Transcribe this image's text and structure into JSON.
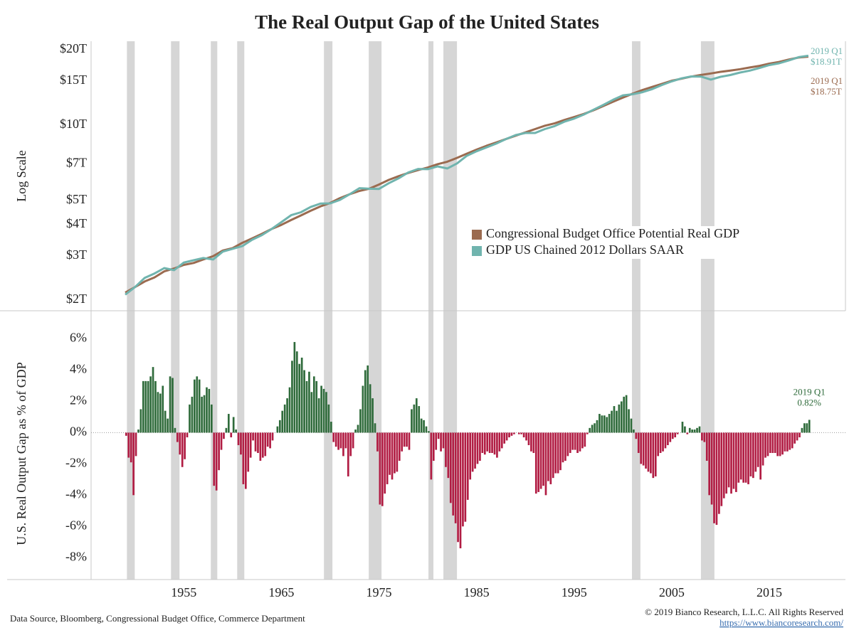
{
  "title": "The Real Output Gap of the United States",
  "source": "Data Source, Bloomberg, Congressional Budget Office, Commerce Department",
  "copyright": "© 2019 Bianco Research, L.L.C. All Rights Reserved",
  "url": "https://www.biancoresearch.com/",
  "chart_data": [
    {
      "type": "line",
      "ylabel": "Log Scale",
      "log_scale": true,
      "legend": "center right",
      "xlim": [
        1945.5,
        2022.8
      ],
      "ylim": [
        1.81,
        21.6
      ],
      "yticks": [
        {
          "value": 2,
          "label": "$2T"
        },
        {
          "value": 3,
          "label": "$3T"
        },
        {
          "value": 4,
          "label": "$4T"
        },
        {
          "value": 5,
          "label": "$5T"
        },
        {
          "value": 7,
          "label": "$7T"
        },
        {
          "value": 10,
          "label": "$10T"
        },
        {
          "value": 15,
          "label": "$15T"
        },
        {
          "value": 20,
          "label": "$20T"
        }
      ],
      "shaded_periods": [
        [
          1949.17,
          1949.97
        ],
        [
          1953.69,
          1954.56
        ],
        [
          1957.77,
          1958.43
        ],
        [
          1960.47,
          1961.2
        ],
        [
          1969.36,
          1970.23
        ],
        [
          1973.95,
          1975.26
        ],
        [
          1980.07,
          1980.58
        ],
        [
          1981.6,
          1982.99
        ],
        [
          2000.92,
          2001.79
        ],
        [
          2007.99,
          2009.37
        ]
      ],
      "shade_color": "#d6d6d6",
      "x": [
        1949,
        1950,
        1951,
        1952,
        1953,
        1954,
        1955,
        1956,
        1957,
        1958,
        1959,
        1960,
        1961,
        1962,
        1963,
        1964,
        1965,
        1966,
        1967,
        1968,
        1969,
        1970,
        1971,
        1972,
        1973,
        1974,
        1975,
        1976,
        1977,
        1978,
        1979,
        1980,
        1981,
        1982,
        1983,
        1984,
        1985,
        1986,
        1987,
        1988,
        1989,
        1990,
        1991,
        1992,
        1993,
        1994,
        1995,
        1996,
        1997,
        1998,
        1999,
        2000,
        2001,
        2002,
        2003,
        2004,
        2005,
        2006,
        2007,
        2008,
        2009,
        2010,
        2011,
        2012,
        2013,
        2014,
        2015,
        2016,
        2017,
        2018,
        2019
      ],
      "series": [
        {
          "name": "Congressional Budget Office Potential Real GDP",
          "color": "#9b6b50",
          "end_label": "2019 Q1",
          "end_value_label": "$18.75T",
          "values": [
            2.14,
            2.25,
            2.37,
            2.46,
            2.6,
            2.67,
            2.76,
            2.81,
            2.9,
            2.99,
            3.15,
            3.22,
            3.38,
            3.52,
            3.67,
            3.84,
            3.99,
            4.17,
            4.35,
            4.54,
            4.73,
            4.88,
            5.1,
            5.29,
            5.45,
            5.56,
            5.78,
            6.03,
            6.24,
            6.43,
            6.6,
            6.76,
            6.97,
            7.13,
            7.39,
            7.68,
            7.97,
            8.25,
            8.51,
            8.78,
            9.06,
            9.34,
            9.63,
            9.93,
            10.15,
            10.47,
            10.76,
            11.07,
            11.45,
            11.91,
            12.39,
            12.87,
            13.34,
            13.8,
            14.19,
            14.6,
            15.02,
            15.3,
            15.6,
            15.84,
            16.06,
            16.3,
            16.49,
            16.7,
            16.97,
            17.23,
            17.58,
            17.85,
            18.26,
            18.59,
            18.75
          ]
        },
        {
          "name": "GDP US Chained 2012 Dollars SAAR",
          "color": "#70b4ae",
          "end_label": "2019 Q1",
          "end_value_label": "$18.91T",
          "values": [
            2.1,
            2.25,
            2.45,
            2.55,
            2.68,
            2.63,
            2.82,
            2.88,
            2.94,
            2.9,
            3.12,
            3.2,
            3.28,
            3.48,
            3.63,
            3.84,
            4.09,
            4.36,
            4.48,
            4.7,
            4.85,
            4.86,
            5.02,
            5.29,
            5.59,
            5.56,
            5.55,
            5.85,
            6.12,
            6.46,
            6.67,
            6.66,
            6.83,
            6.7,
            7.02,
            7.53,
            7.85,
            8.13,
            8.42,
            8.78,
            9.11,
            9.29,
            9.29,
            9.63,
            9.9,
            10.31,
            10.6,
            11.01,
            11.51,
            12.03,
            12.61,
            13.13,
            13.27,
            13.52,
            13.91,
            14.45,
            14.94,
            15.35,
            15.63,
            15.6,
            15.18,
            15.57,
            15.83,
            16.2,
            16.49,
            16.89,
            17.35,
            17.64,
            18.11,
            18.65,
            18.91
          ]
        }
      ]
    },
    {
      "type": "bar",
      "ylabel": "U.S. Real Output Gap as % of GDP",
      "xlim": [
        1945.5,
        2022.8
      ],
      "ylim": [
        -9.4,
        7.8
      ],
      "xticks": [
        1955,
        1965,
        1975,
        1985,
        1995,
        2005,
        2015
      ],
      "yticks": [
        {
          "value": -8,
          "label": "-8%"
        },
        {
          "value": -6,
          "label": "-6%"
        },
        {
          "value": -4,
          "label": "-4%"
        },
        {
          "value": -2,
          "label": "-2%"
        },
        {
          "value": 0,
          "label": "0%"
        },
        {
          "value": 2,
          "label": "2%"
        },
        {
          "value": 4,
          "label": "4%"
        },
        {
          "value": 6,
          "label": "6%"
        }
      ],
      "shaded_periods": [
        [
          1949.17,
          1949.97
        ],
        [
          1953.69,
          1954.56
        ],
        [
          1957.77,
          1958.43
        ],
        [
          1960.47,
          1961.2
        ],
        [
          1969.36,
          1970.23
        ],
        [
          1973.95,
          1975.26
        ],
        [
          1980.07,
          1980.58
        ],
        [
          1981.6,
          1982.99
        ],
        [
          2000.92,
          2001.79
        ],
        [
          2007.99,
          2009.37
        ]
      ],
      "shade_color": "#d6d6d6",
      "colors": {
        "positive": "#2f6b3b",
        "negative": "#b11c43"
      },
      "end_label": "2019 Q1",
      "end_value_label": "0.82%",
      "x": [
        1949,
        1949.25,
        1949.5,
        1949.75,
        1950,
        1950.25,
        1950.5,
        1950.75,
        1951,
        1951.25,
        1951.5,
        1951.75,
        1952,
        1952.25,
        1952.5,
        1952.75,
        1953,
        1953.25,
        1953.5,
        1953.75,
        1954,
        1954.25,
        1954.5,
        1954.75,
        1955,
        1955.25,
        1955.5,
        1955.75,
        1956,
        1956.25,
        1956.5,
        1956.75,
        1957,
        1957.25,
        1957.5,
        1957.75,
        1958,
        1958.25,
        1958.5,
        1958.75,
        1959,
        1959.25,
        1959.5,
        1959.75,
        1960,
        1960.25,
        1960.5,
        1960.75,
        1961,
        1961.25,
        1961.5,
        1961.75,
        1962,
        1962.25,
        1962.5,
        1962.75,
        1963,
        1963.25,
        1963.5,
        1963.75,
        1964,
        1964.25,
        1964.5,
        1964.75,
        1965,
        1965.25,
        1965.5,
        1965.75,
        1966,
        1966.25,
        1966.5,
        1966.75,
        1967,
        1967.25,
        1967.5,
        1967.75,
        1968,
        1968.25,
        1968.5,
        1968.75,
        1969,
        1969.25,
        1969.5,
        1969.75,
        1970,
        1970.25,
        1970.5,
        1970.75,
        1971,
        1971.25,
        1971.5,
        1971.75,
        1972,
        1972.25,
        1972.5,
        1972.75,
        1973,
        1973.25,
        1973.5,
        1973.75,
        1974,
        1974.25,
        1974.5,
        1974.75,
        1975,
        1975.25,
        1975.5,
        1975.75,
        1976,
        1976.25,
        1976.5,
        1976.75,
        1977,
        1977.25,
        1977.5,
        1977.75,
        1978,
        1978.25,
        1978.5,
        1978.75,
        1979,
        1979.25,
        1979.5,
        1979.75,
        1980,
        1980.25,
        1980.5,
        1980.75,
        1981,
        1981.25,
        1981.5,
        1981.75,
        1982,
        1982.25,
        1982.5,
        1982.75,
        1983,
        1983.25,
        1983.5,
        1983.75,
        1984,
        1984.25,
        1984.5,
        1984.75,
        1985,
        1985.25,
        1985.5,
        1985.75,
        1986,
        1986.25,
        1986.5,
        1986.75,
        1987,
        1987.25,
        1987.5,
        1987.75,
        1988,
        1988.25,
        1988.5,
        1988.75,
        1989,
        1989.25,
        1989.5,
        1989.75,
        1990,
        1990.25,
        1990.5,
        1990.75,
        1991,
        1991.25,
        1991.5,
        1991.75,
        1992,
        1992.25,
        1992.5,
        1992.75,
        1993,
        1993.25,
        1993.5,
        1993.75,
        1994,
        1994.25,
        1994.5,
        1994.75,
        1995,
        1995.25,
        1995.5,
        1995.75,
        1996,
        1996.25,
        1996.5,
        1996.75,
        1997,
        1997.25,
        1997.5,
        1997.75,
        1998,
        1998.25,
        1998.5,
        1998.75,
        1999,
        1999.25,
        1999.5,
        1999.75,
        2000,
        2000.25,
        2000.5,
        2000.75,
        2001,
        2001.25,
        2001.5,
        2001.75,
        2002,
        2002.25,
        2002.5,
        2002.75,
        2003,
        2003.25,
        2003.5,
        2003.75,
        2004,
        2004.25,
        2004.5,
        2004.75,
        2005,
        2005.25,
        2005.5,
        2005.75,
        2006,
        2006.25,
        2006.5,
        2006.75,
        2007,
        2007.25,
        2007.5,
        2007.75,
        2008,
        2008.25,
        2008.5,
        2008.75,
        2009,
        2009.25,
        2009.5,
        2009.75,
        2010,
        2010.25,
        2010.5,
        2010.75,
        2011,
        2011.25,
        2011.5,
        2011.75,
        2012,
        2012.25,
        2012.5,
        2012.75,
        2013,
        2013.25,
        2013.5,
        2013.75,
        2014,
        2014.25,
        2014.5,
        2014.75,
        2015,
        2015.25,
        2015.5,
        2015.75,
        2016,
        2016.25,
        2016.5,
        2016.75,
        2017,
        2017.25,
        2017.5,
        2017.75,
        2018,
        2018.25,
        2018.5,
        2018.75,
        2019
      ],
      "values": [
        -0.2,
        -1.6,
        -1.9,
        -4.0,
        -1.5,
        0.2,
        1.5,
        3.3,
        3.3,
        3.3,
        3.6,
        4.2,
        3.3,
        2.6,
        2.5,
        3.0,
        1.4,
        0.9,
        3.6,
        3.5,
        0.3,
        -0.6,
        -1.4,
        -2.2,
        -1.7,
        -0.3,
        1.8,
        2.3,
        3.4,
        3.6,
        3.4,
        2.3,
        2.4,
        2.9,
        2.8,
        1.8,
        -3.4,
        -3.7,
        -2.4,
        -1.1,
        -0.4,
        0.3,
        1.2,
        -0.3,
        1.0,
        0.2,
        -0.8,
        -1.4,
        -3.3,
        -3.6,
        -2.5,
        -1.6,
        -0.5,
        -1.2,
        -1.3,
        -1.8,
        -1.6,
        -1.5,
        -0.9,
        -1.0,
        -0.5,
        0.0,
        0.4,
        0.8,
        1.4,
        1.8,
        2.2,
        2.9,
        4.6,
        5.8,
        5.2,
        4.4,
        4.8,
        4.0,
        3.3,
        3.9,
        2.6,
        3.6,
        3.3,
        2.2,
        3.0,
        2.8,
        2.6,
        1.8,
        0.7,
        -0.6,
        -0.9,
        -1.1,
        -1.0,
        -1.5,
        -1.0,
        -2.8,
        -1.5,
        -1.0,
        0.2,
        0.5,
        1.5,
        3.0,
        4.0,
        4.3,
        3.1,
        2.2,
        0.6,
        -1.2,
        -4.6,
        -4.7,
        -3.9,
        -3.3,
        -2.7,
        -3.0,
        -2.6,
        -2.5,
        -1.8,
        -1.2,
        -0.9,
        -0.9,
        -1.1,
        1.5,
        1.8,
        2.2,
        1.7,
        0.9,
        0.8,
        0.4,
        0.1,
        -3.0,
        -1.8,
        -1.1,
        -0.4,
        -1.2,
        -1.0,
        -2.2,
        -2.9,
        -4.5,
        -5.3,
        -5.8,
        -7.0,
        -7.4,
        -6.0,
        -5.7,
        -4.3,
        -3.0,
        -2.5,
        -2.3,
        -2.0,
        -1.8,
        -1.3,
        -1.4,
        -1.2,
        -1.3,
        -1.3,
        -1.4,
        -1.6,
        -1.2,
        -1.0,
        -0.7,
        -0.5,
        -0.3,
        -0.2,
        -0.1,
        0.0,
        -0.1,
        -0.1,
        -0.3,
        -0.5,
        -0.8,
        -1.2,
        -1.3,
        -3.9,
        -3.8,
        -3.6,
        -3.4,
        -4.0,
        -3.1,
        -3.3,
        -2.9,
        -2.6,
        -2.6,
        -2.4,
        -1.9,
        -1.8,
        -1.5,
        -1.3,
        -1.1,
        -1.1,
        -1.3,
        -1.2,
        -1.0,
        -0.9,
        -0.1,
        0.3,
        0.5,
        0.6,
        0.8,
        1.2,
        1.1,
        1.1,
        1.0,
        1.2,
        1.4,
        1.7,
        1.4,
        1.8,
        2.0,
        2.3,
        2.4,
        1.5,
        0.9,
        0.2,
        -0.4,
        -1.3,
        -2.0,
        -2.1,
        -2.3,
        -2.5,
        -2.6,
        -2.9,
        -2.8,
        -1.5,
        -1.3,
        -1.2,
        -1.0,
        -0.8,
        -0.6,
        -0.4,
        -0.3,
        -0.1,
        0.0,
        0.7,
        0.4,
        -0.1,
        0.3,
        0.2,
        0.2,
        0.3,
        0.4,
        -0.5,
        -0.6,
        -1.8,
        -4.0,
        -4.6,
        -5.8,
        -5.9,
        -5.2,
        -4.7,
        -4.2,
        -3.9,
        -3.5,
        -3.9,
        -3.6,
        -3.8,
        -3.2,
        -3.0,
        -3.2,
        -3.2,
        -3.3,
        -2.8,
        -2.9,
        -2.5,
        -2.2,
        -3.0,
        -2.1,
        -1.6,
        -1.5,
        -1.3,
        -1.3,
        -1.3,
        -1.5,
        -1.5,
        -1.4,
        -1.2,
        -1.2,
        -1.1,
        -1.0,
        -0.7,
        -0.5,
        -0.3,
        0.3,
        0.6,
        0.6,
        0.82
      ]
    }
  ]
}
